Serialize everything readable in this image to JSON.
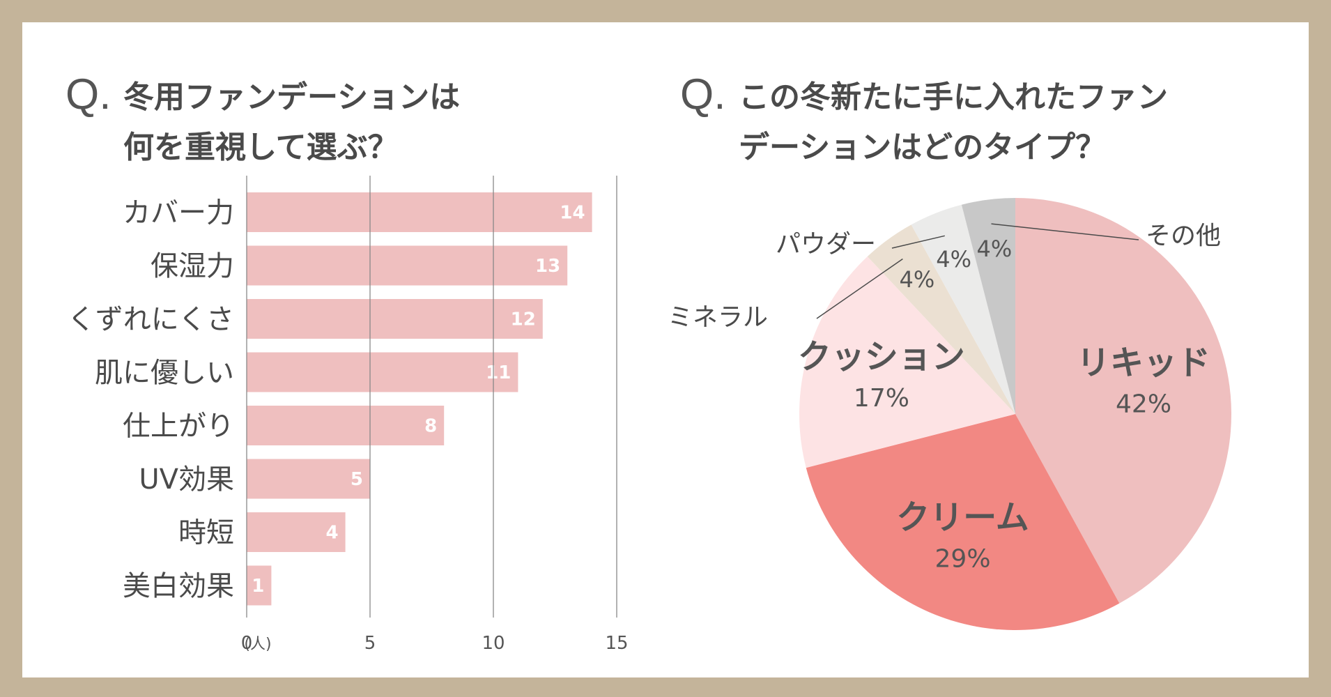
{
  "colors": {
    "background_frame": "#c4b49a",
    "panel": "#ffffff",
    "bar": "#efbfbf",
    "grid": "#888888",
    "text": "#4a4a4a",
    "pie_liquid": "#efbfbf",
    "pie_cream": "#f28883",
    "pie_cushion": "#fde3e4",
    "pie_mineral": "#ebe0d2",
    "pie_powder": "#ebebea",
    "pie_other": "#c8c8c8"
  },
  "chart_data": [
    {
      "type": "bar",
      "orientation": "horizontal",
      "q_mark": "Q.",
      "title_line1": "冬用ファンデーションは",
      "title_line2": "何を重視して選ぶ？",
      "categories": [
        "カバー力",
        "保湿力",
        "くずれにくさ",
        "肌に優しい",
        "仕上がり",
        "UV効果",
        "時短",
        "美白効果"
      ],
      "values": [
        14,
        13,
        12,
        11,
        8,
        5,
        4,
        1
      ],
      "value_labels": [
        "14",
        "13",
        "12",
        "11",
        "8",
        "5",
        "4",
        "1"
      ],
      "xlim": [
        0,
        15
      ],
      "x_ticks": [
        0,
        5,
        10,
        15
      ],
      "x_tick_labels": [
        "0",
        "5",
        "10",
        "15"
      ],
      "x_unit": "(人)",
      "grid": true
    },
    {
      "type": "pie",
      "q_mark": "Q.",
      "title_line1": "この冬新たに手に入れたファン",
      "title_line2": "デーションはどのタイプ？",
      "slices": [
        {
          "name": "リキッド",
          "percent": 42,
          "label": "42%",
          "color": "#efbfbf"
        },
        {
          "name": "クリーム",
          "percent": 29,
          "label": "29%",
          "color": "#f28883"
        },
        {
          "name": "クッション",
          "percent": 17,
          "label": "17%",
          "color": "#fde3e4"
        },
        {
          "name": "ミネラル",
          "percent": 4,
          "label": "4%",
          "color": "#ebe0d2"
        },
        {
          "name": "パウダー",
          "percent": 4,
          "label": "4%",
          "color": "#ebebea"
        },
        {
          "name": "その他",
          "percent": 4,
          "label": "4%",
          "color": "#c8c8c8"
        }
      ]
    }
  ]
}
